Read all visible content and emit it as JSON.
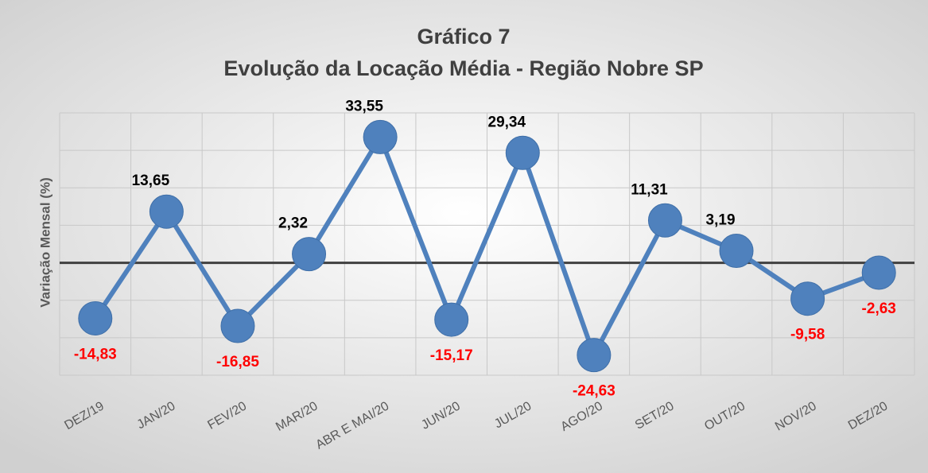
{
  "chart_data": {
    "type": "line",
    "title": "Gráfico 7",
    "subtitle": "Evolução da Locação Média - Região Nobre SP",
    "y_label": "Variação Mensal (%)",
    "categories": [
      "DEZ/19",
      "JAN/20",
      "FEV/20",
      "MAR/20",
      "ABR E MAI/20",
      "JUN/20",
      "JUL/20",
      "AGO/20",
      "SET/20",
      "OUT/20",
      "NOV/20",
      "DEZ/20"
    ],
    "series": [
      {
        "name": "Variação Mensal (%)",
        "color": "#4f81bd",
        "values": [
          -14.83,
          13.65,
          -16.85,
          2.32,
          33.55,
          -15.17,
          29.34,
          -24.63,
          11.31,
          3.19,
          -9.58,
          -2.63
        ],
        "value_labels": [
          "-14,83",
          "13,65",
          "-16,85",
          "2,32",
          "33,55",
          "-15,17",
          "29,34",
          "-24,63",
          "11,31",
          "3,19",
          "-9,58",
          "-2,63"
        ]
      }
    ],
    "positive_label_color": "#000000",
    "negative_label_color": "#ff0000",
    "ylim": [
      -30,
      40
    ],
    "yticks": [
      -30,
      -20,
      -10,
      0,
      10,
      20,
      30,
      40
    ],
    "grid": true
  }
}
